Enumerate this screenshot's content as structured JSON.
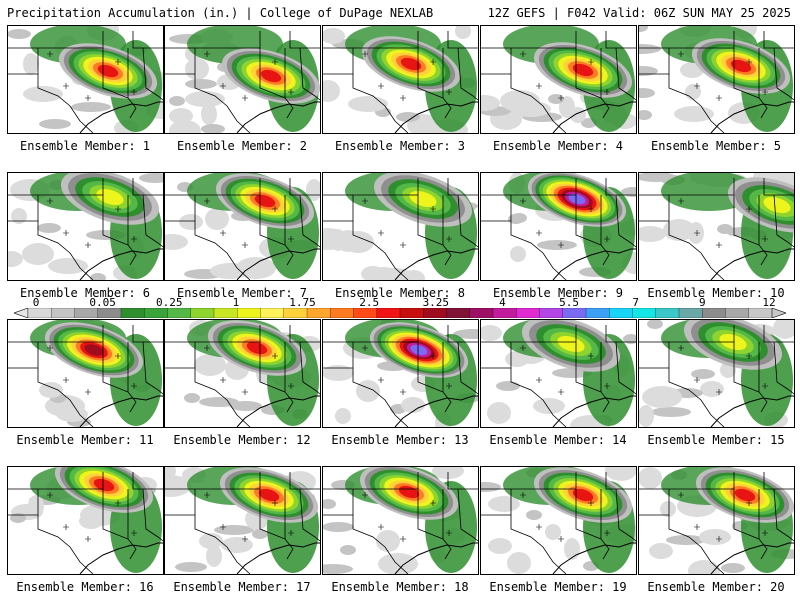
{
  "header": {
    "left": "Precipitation Accumulation (in.) | College of DuPage NEXLAB",
    "right": "12Z GEFS | F042 Valid: 06Z SUN MAY 25 2025"
  },
  "colorbar": {
    "tick_labels": [
      "0",
      "0.05",
      "0.25",
      "1",
      "1.75",
      "2.5",
      "3.25",
      "4",
      "5.5",
      "7",
      "9",
      "12"
    ],
    "colors": [
      "#d9d9d9",
      "#c4c4c4",
      "#a8a8a8",
      "#8c8c8c",
      "#2f8f2f",
      "#3aa33a",
      "#54b848",
      "#8ed32e",
      "#c9e625",
      "#eef51c",
      "#fff25a",
      "#ffd13a",
      "#ffa62e",
      "#ff7b22",
      "#ff4a1a",
      "#f01414",
      "#c80f0f",
      "#a00b1e",
      "#801236",
      "#9d1066",
      "#c31b9e",
      "#e02bd2",
      "#b445e6",
      "#7a6cf2",
      "#3ea0f5",
      "#19d4f5",
      "#14e6e6",
      "#3cc8c8",
      "#6aa8a8",
      "#8c8c8c",
      "#a8a8a8",
      "#c8c8c8"
    ]
  },
  "members": [
    {
      "label": "Ensemble Member: 1",
      "intensity": 2,
      "core": [
        100,
        45
      ]
    },
    {
      "label": "Ensemble Member: 2",
      "intensity": 2,
      "core": [
        106,
        50
      ]
    },
    {
      "label": "Ensemble Member: 3",
      "intensity": 2,
      "core": [
        88,
        38
      ]
    },
    {
      "label": "Ensemble Member: 4",
      "intensity": 2,
      "core": [
        102,
        44
      ]
    },
    {
      "label": "Ensemble Member: 5",
      "intensity": 2,
      "core": [
        102,
        40
      ]
    },
    {
      "label": "Ensemble Member: 6",
      "intensity": 1,
      "core": [
        102,
        24
      ]
    },
    {
      "label": "Ensemble Member: 7",
      "intensity": 2,
      "core": [
        100,
        28
      ]
    },
    {
      "label": "Ensemble Member: 8",
      "intensity": 1,
      "core": [
        100,
        26
      ]
    },
    {
      "label": "Ensemble Member: 9",
      "intensity": 4,
      "core": [
        96,
        26
      ]
    },
    {
      "label": "Ensemble Member: 10",
      "intensity": 1,
      "core": [
        138,
        32
      ]
    },
    {
      "label": "Ensemble Member: 11",
      "intensity": 3,
      "core": [
        86,
        30
      ]
    },
    {
      "label": "Ensemble Member: 12",
      "intensity": 2,
      "core": [
        92,
        28
      ]
    },
    {
      "label": "Ensemble Member: 13",
      "intensity": 4,
      "core": [
        96,
        30
      ]
    },
    {
      "label": "Ensemble Member: 14",
      "intensity": 1,
      "core": [
        90,
        24
      ]
    },
    {
      "label": "Ensemble Member: 15",
      "intensity": 1,
      "core": [
        94,
        22
      ]
    },
    {
      "label": "Ensemble Member: 16",
      "intensity": 2,
      "core": [
        96,
        18
      ]
    },
    {
      "label": "Ensemble Member: 17",
      "intensity": 2,
      "core": [
        104,
        28
      ]
    },
    {
      "label": "Ensemble Member: 18",
      "intensity": 2,
      "core": [
        86,
        25
      ]
    },
    {
      "label": "Ensemble Member: 19",
      "intensity": 2,
      "core": [
        102,
        28
      ]
    },
    {
      "label": "Ensemble Member: 20",
      "intensity": 2,
      "core": [
        106,
        28
      ]
    }
  ]
}
